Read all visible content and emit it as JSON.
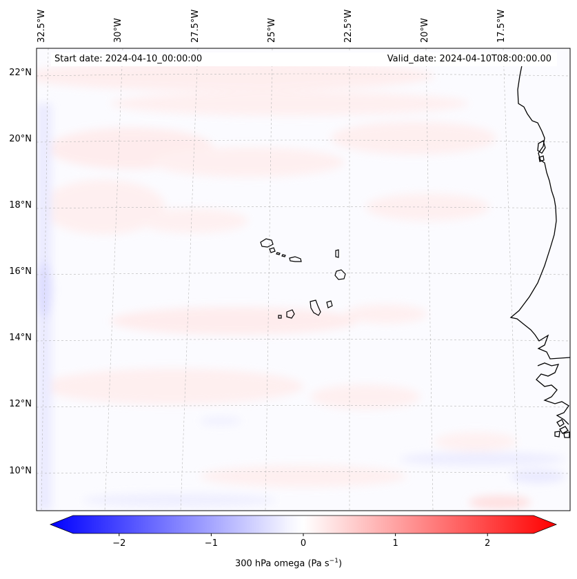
{
  "map": {
    "variable": "300 hPa omega",
    "start_date_prefix": "Start date: ",
    "start_date": "2024-04-10_00:00:00",
    "valid_date_prefix": "Valid_date: ",
    "valid_date": "2024-04-10T08:00:00.00",
    "longitude_labels": [
      "32.5°W",
      "30°W",
      "27.5°W",
      "25°W",
      "22.5°W",
      "20°W",
      "17.5°W"
    ],
    "latitude_labels": [
      "22°N",
      "20°N",
      "18°N",
      "16°N",
      "14°N",
      "12°N",
      "10°N"
    ],
    "colorbar": {
      "ticks": [
        "−2",
        "−1",
        "0",
        "1",
        "2"
      ],
      "tick_values": [
        -2,
        -1,
        0,
        1,
        2
      ],
      "range": [
        -2.5,
        2.5
      ],
      "label": "300 hPa omega (Pa s",
      "label_sup": "−1",
      "label_end": ")",
      "negative_color": "#0000ff",
      "positive_color": "#ff0000",
      "extend": "both"
    },
    "colors": {
      "land_outline": "#000000",
      "gridline": "#b0b0b0"
    }
  }
}
